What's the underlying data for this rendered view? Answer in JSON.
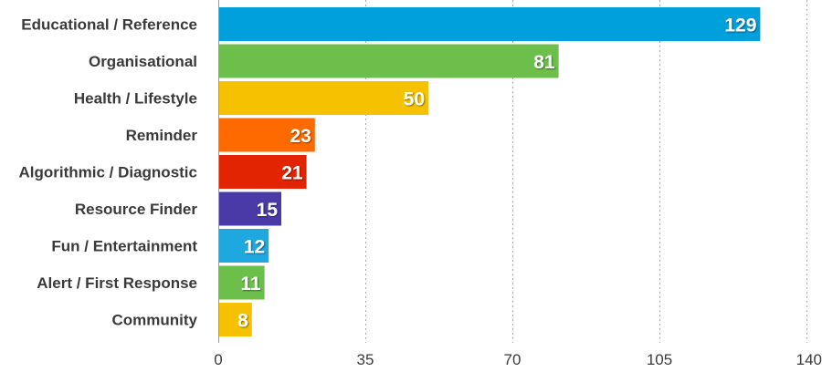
{
  "chart_data": {
    "type": "bar",
    "orientation": "horizontal",
    "title": "",
    "xlabel": "",
    "ylabel": "",
    "categories": [
      "Educational / Reference",
      "Organisational",
      "Health / Lifestyle",
      "Reminder",
      "Algorithmic / Diagnostic",
      "Resource Finder",
      "Fun / Entertainment",
      "Alert / First Response",
      "Community"
    ],
    "values": [
      129,
      81,
      50,
      23,
      21,
      15,
      12,
      11,
      8
    ],
    "colors": [
      "#00a0dc",
      "#6cbf4a",
      "#f6c200",
      "#ff6a00",
      "#e32400",
      "#4a3aa8",
      "#1ea8df",
      "#6cbf4a",
      "#f6c200"
    ],
    "xlim": [
      0,
      140
    ],
    "xticks": [
      0,
      35,
      70,
      105,
      140
    ],
    "grid": true,
    "grid_style": "dashed-vertical",
    "data_labels": true
  }
}
